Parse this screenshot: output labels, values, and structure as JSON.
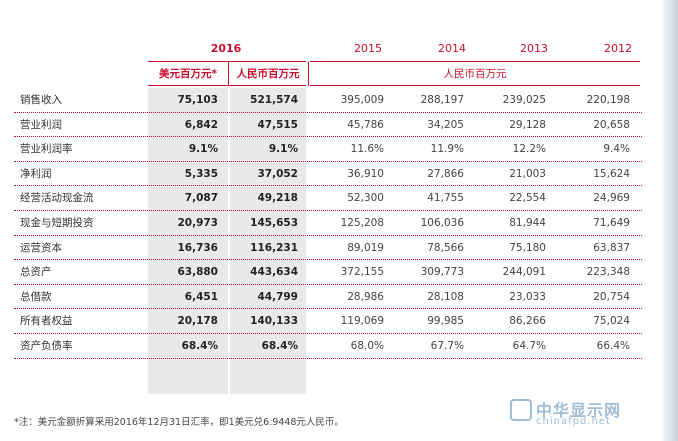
{
  "header": {
    "years": [
      "2016",
      "2015",
      "2014",
      "2013",
      "2012"
    ],
    "unit_usd": "美元百万元*",
    "unit_rmb": "人民币百万元",
    "unit_rmb_history": "人民币百万元"
  },
  "rows": [
    {
      "label": "销售收入",
      "usd": "75,103",
      "rmb": "521,574",
      "y2015": "395,009",
      "y2014": "288,197",
      "y2013": "239,025",
      "y2012": "220,198"
    },
    {
      "label": "营业利润",
      "usd": "6,842",
      "rmb": "47,515",
      "y2015": "45,786",
      "y2014": "34,205",
      "y2013": "29,128",
      "y2012": "20,658"
    },
    {
      "label": "营业利润率",
      "usd": "9.1%",
      "rmb": "9.1%",
      "y2015": "11.6%",
      "y2014": "11.9%",
      "y2013": "12.2%",
      "y2012": "9.4%"
    },
    {
      "label": "净利润",
      "usd": "5,335",
      "rmb": "37,052",
      "y2015": "36,910",
      "y2014": "27,866",
      "y2013": "21,003",
      "y2012": "15,624"
    },
    {
      "label": "经营活动现金流",
      "usd": "7,087",
      "rmb": "49,218",
      "y2015": "52,300",
      "y2014": "41,755",
      "y2013": "22,554",
      "y2012": "24,969"
    },
    {
      "label": "现金与短期投资",
      "usd": "20,973",
      "rmb": "145,653",
      "y2015": "125,208",
      "y2014": "106,036",
      "y2013": "81,944",
      "y2012": "71,649"
    },
    {
      "label": "运营资本",
      "usd": "16,736",
      "rmb": "116,231",
      "y2015": "89,019",
      "y2014": "78,566",
      "y2013": "75,180",
      "y2012": "63,837"
    },
    {
      "label": "总资产",
      "usd": "63,880",
      "rmb": "443,634",
      "y2015": "372,155",
      "y2014": "309,773",
      "y2013": "244,091",
      "y2012": "223,348"
    },
    {
      "label": "总借款",
      "usd": "6,451",
      "rmb": "44,799",
      "y2015": "28,986",
      "y2014": "28,108",
      "y2013": "23,033",
      "y2012": "20,754"
    },
    {
      "label": "所有者权益",
      "usd": "20,178",
      "rmb": "140,133",
      "y2015": "119,069",
      "y2014": "99,985",
      "y2013": "86,266",
      "y2012": "75,024"
    },
    {
      "label": "资产负债率",
      "usd": "68.4%",
      "rmb": "68.4%",
      "y2015": "68.0%",
      "y2014": "67.7%",
      "y2013": "64.7%",
      "y2012": "66.4%"
    }
  ],
  "footnote": "*注：美元金额折算采用2016年12月31日汇率，即1美元兑6.9448元人民币。",
  "watermark": {
    "title": "中华显示网",
    "url": "chinafpd.net",
    "logo_text": "FPD"
  },
  "colors": {
    "accent": "#c8102e",
    "shade": "#e9e9e9",
    "watermark": "#7fa9c9"
  }
}
